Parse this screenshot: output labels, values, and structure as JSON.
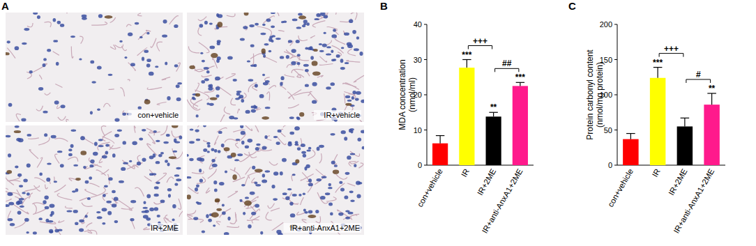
{
  "image_panel": {
    "label": "A",
    "captions": [
      "con+vehicle",
      "IR+vehicle",
      "IR+2ME",
      "IR+anti-AnxA1+2ME"
    ]
  },
  "chart_data": [
    {
      "type": "bar",
      "title": "B",
      "y_label": [
        "MDA concentration",
        "(nmol/ml)"
      ],
      "categories": [
        "con+vehicle",
        "IR",
        "IR+2ME",
        "IR+anti-AnxA1+2ME"
      ],
      "values": [
        6.2,
        27.7,
        13.8,
        22.5
      ],
      "errors": [
        2.2,
        2.3,
        1.2,
        1.0
      ],
      "colors": [
        "#ff0000",
        "#ffff00",
        "#000000",
        "#ff1a8c"
      ],
      "ylim": [
        0,
        40
      ],
      "yticks": [
        0,
        10,
        20,
        30,
        40
      ],
      "annotations": [
        {
          "text": "***",
          "category": "IR"
        },
        {
          "text": "**",
          "category": "IR+2ME"
        },
        {
          "text": "***",
          "category": "IR+anti-AnxA1+2ME"
        }
      ],
      "comparisons": [
        {
          "text": "+++",
          "from": "IR",
          "to": "IR+2ME"
        },
        {
          "text": "##",
          "from": "IR+2ME",
          "to": "IR+anti-AnxA1+2ME"
        }
      ]
    },
    {
      "type": "bar",
      "title": "C",
      "y_label": [
        "Protein carbonyl content",
        "(nmol/mg protein)"
      ],
      "categories": [
        "con+vehicle",
        "IR",
        "IR+2ME",
        "IR+anti-AnxA1+2ME"
      ],
      "values": [
        37,
        124,
        55,
        86
      ],
      "errors": [
        8,
        15,
        12,
        16
      ],
      "colors": [
        "#ff0000",
        "#ffff00",
        "#000000",
        "#ff1a8c"
      ],
      "ylim": [
        0,
        200
      ],
      "yticks": [
        0,
        50,
        100,
        150,
        200
      ],
      "annotations": [
        {
          "text": "***",
          "category": "IR"
        },
        {
          "text": "**",
          "category": "IR+anti-AnxA1+2ME"
        }
      ],
      "comparisons": [
        {
          "text": "+++",
          "from": "IR",
          "to": "IR+2ME"
        },
        {
          "text": "#",
          "from": "IR+2ME",
          "to": "IR+anti-AnxA1+2ME"
        }
      ]
    }
  ]
}
